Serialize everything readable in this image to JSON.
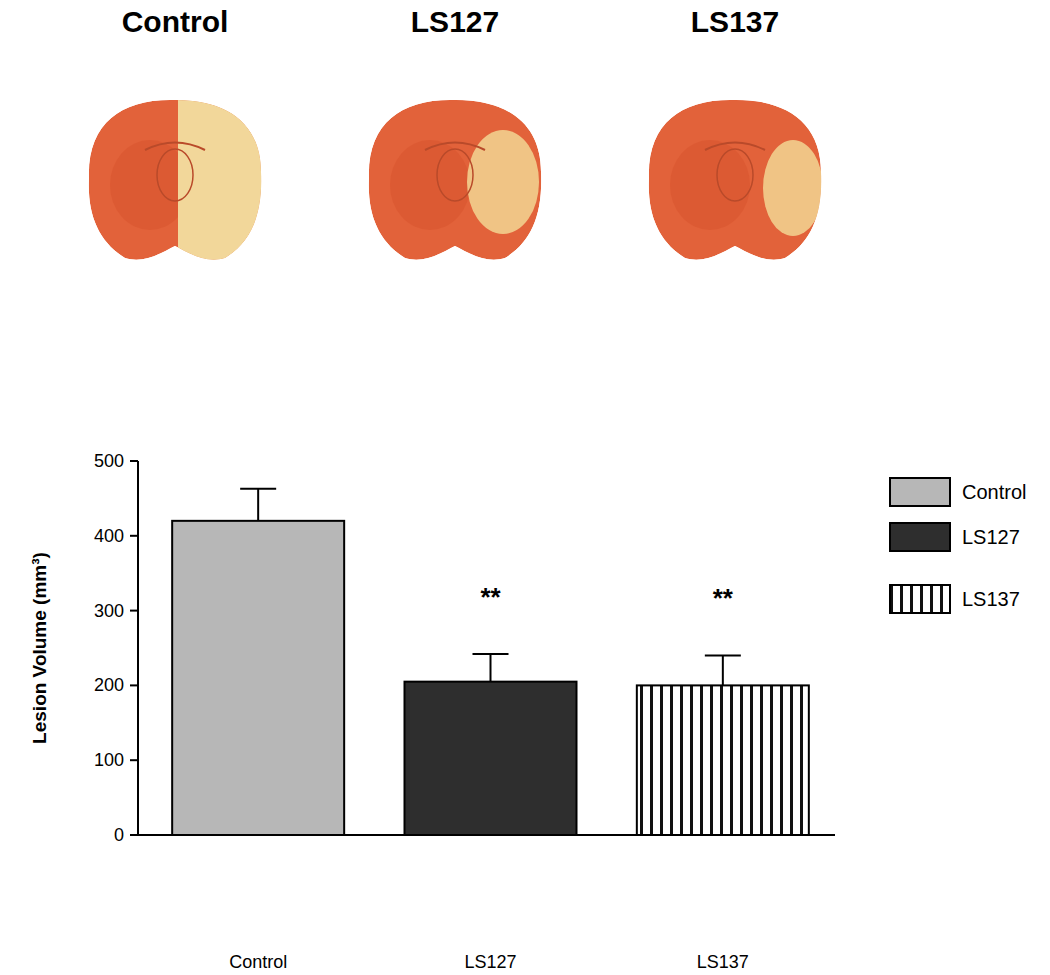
{
  "chart_data": {
    "type": "bar",
    "y_label": "Lesion Volume (mm³)",
    "categories": [
      "Control",
      "LS127",
      "LS137"
    ],
    "values": [
      420,
      205,
      200
    ],
    "errors": [
      43,
      37,
      40
    ],
    "annotations": [
      null,
      "**",
      "**"
    ],
    "colors": [
      "#b7b7b7",
      "#2e2e2e",
      "#ffffff"
    ],
    "ylim": [
      0,
      500
    ],
    "yticks": [
      0,
      100,
      200,
      300,
      400,
      500
    ],
    "legend": "right"
  },
  "image_panels": {
    "titles": [
      "Control",
      "LS127",
      "LS137"
    ]
  }
}
